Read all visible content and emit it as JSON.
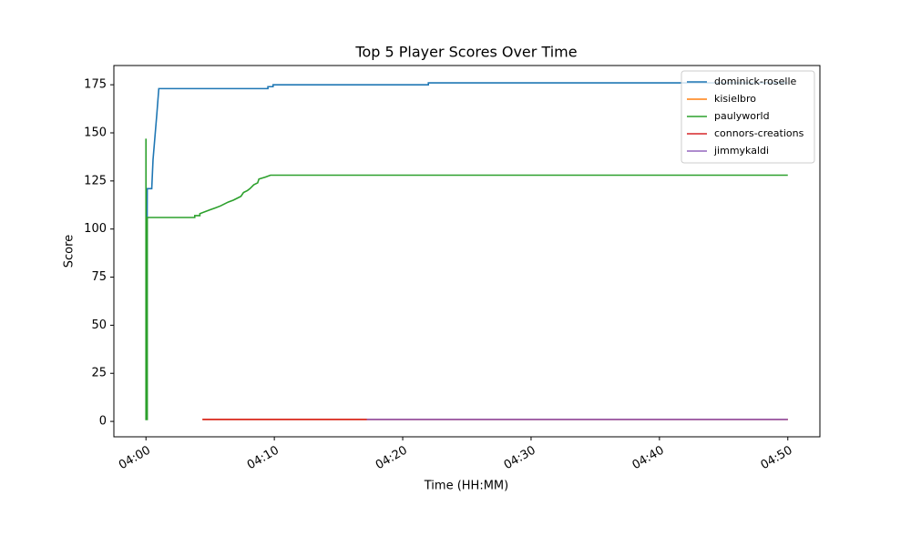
{
  "chart_data": {
    "type": "line",
    "title": "Top 5 Player Scores Over Time",
    "x_label": "Time (HH:MM)",
    "y_label": "Score",
    "xlim": [
      -2.5,
      52.5
    ],
    "ylim": [
      -8,
      185
    ],
    "xticks": [
      {
        "value": 0,
        "label": "04:00"
      },
      {
        "value": 10,
        "label": "04:10"
      },
      {
        "value": 20,
        "label": "04:20"
      },
      {
        "value": 30,
        "label": "04:30"
      },
      {
        "value": 40,
        "label": "04:40"
      },
      {
        "value": 50,
        "label": "04:50"
      }
    ],
    "yticks": [
      0,
      25,
      50,
      75,
      100,
      125,
      150,
      175
    ],
    "legend": "upper right",
    "grid": false,
    "series": [
      {
        "name": "dominick-roselle",
        "color": "#1f77b4",
        "x": [
          0.05,
          0.1,
          0.45,
          0.55,
          0.7,
          0.85,
          1.0,
          9.5,
          9.5,
          9.9,
          9.9,
          22,
          22,
          50
        ],
        "values": [
          25,
          121,
          121,
          136,
          148,
          160,
          173,
          173,
          174,
          174,
          175,
          175,
          176,
          176
        ]
      },
      {
        "name": "kisielbro",
        "color": "#ff7f0e",
        "x": [
          4.4,
          50
        ],
        "values": [
          1,
          1
        ]
      },
      {
        "name": "paulyworld",
        "color": "#2ca02c",
        "x": [
          0,
          0,
          0.1,
          0.1,
          3.8,
          3.8,
          4.2,
          4.2,
          4.6,
          5.0,
          5.4,
          5.8,
          6.1,
          6.4,
          6.8,
          7.1,
          7.4,
          7.6,
          7.9,
          8.1,
          8.4,
          8.7,
          8.8,
          9.3,
          9.7,
          50
        ],
        "values": [
          147,
          1,
          1,
          106,
          106,
          107,
          107,
          108,
          109,
          110,
          111,
          112,
          113,
          114,
          115,
          116,
          117,
          119,
          120,
          121,
          123,
          124,
          126,
          127,
          128,
          128
        ]
      },
      {
        "name": "connors-creations",
        "color": "#d62728",
        "x": [
          4.4,
          50
        ],
        "values": [
          1,
          1
        ]
      },
      {
        "name": "jimmykaldi",
        "color": "#9467bd",
        "x": [
          17.2,
          50
        ],
        "values": [
          1,
          1
        ]
      }
    ]
  }
}
